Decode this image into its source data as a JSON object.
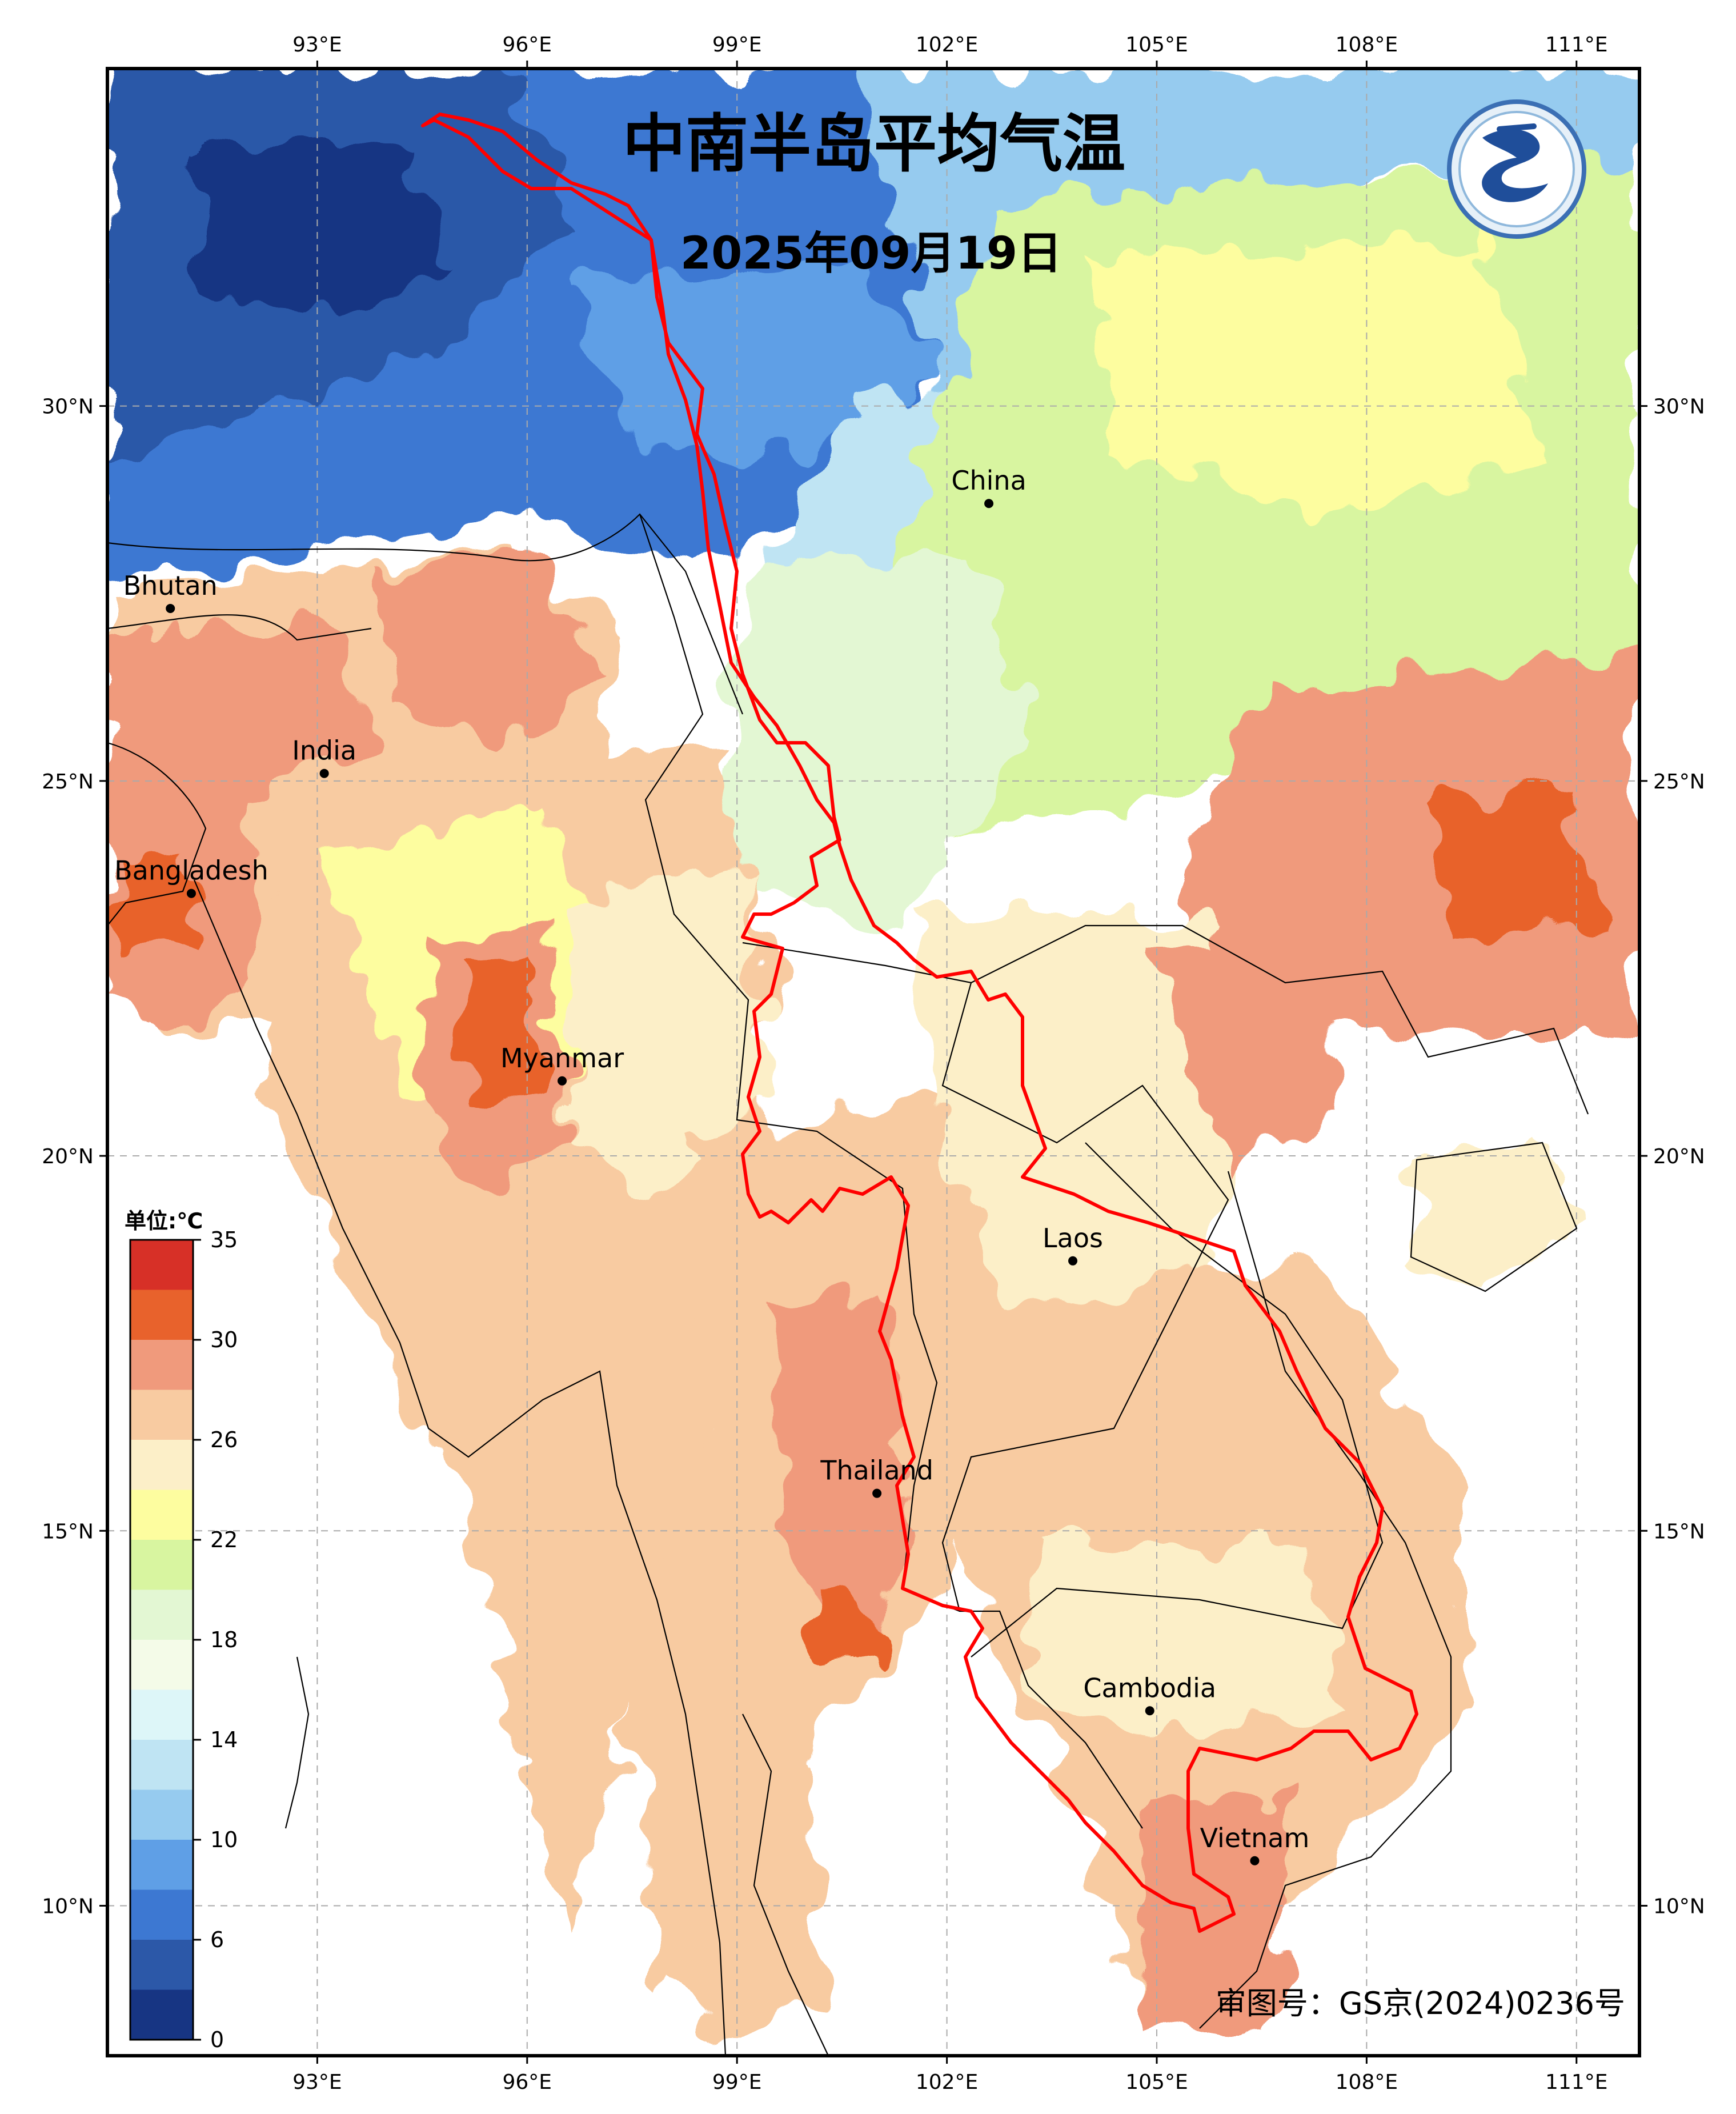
{
  "header": {
    "title": "中南半岛平均气温",
    "date": "2025年09月19日"
  },
  "footer": {
    "approval_number": "审图号：GS京(2024)0236号"
  },
  "axes": {
    "lon_labels": [
      "93°E",
      "96°E",
      "99°E",
      "102°E",
      "105°E",
      "108°E",
      "111°E"
    ],
    "lat_labels": [
      "30°N",
      "25°N",
      "20°N",
      "15°N",
      "10°N"
    ],
    "lon_values": [
      93,
      96,
      99,
      102,
      105,
      108,
      111
    ],
    "lat_values": [
      30,
      25,
      20,
      15,
      10
    ],
    "lon_range": [
      90.0,
      111.9
    ],
    "lat_range": [
      8.0,
      34.5
    ],
    "grid": "dashed"
  },
  "places": [
    {
      "name": "China",
      "lon": 102.6,
      "lat": 28.7
    },
    {
      "name": "Bhutan",
      "lon": 90.9,
      "lat": 27.3
    },
    {
      "name": "India",
      "lon": 93.1,
      "lat": 25.1
    },
    {
      "name": "Bangladesh",
      "lon": 91.2,
      "lat": 23.5
    },
    {
      "name": "Myanmar",
      "lon": 96.5,
      "lat": 21.0
    },
    {
      "name": "Laos",
      "lon": 103.8,
      "lat": 18.6
    },
    {
      "name": "Thailand",
      "lon": 101.0,
      "lat": 15.5
    },
    {
      "name": "Cambodia",
      "lon": 104.9,
      "lat": 12.6
    },
    {
      "name": "Vietnam",
      "lon": 106.4,
      "lat": 10.6
    }
  ],
  "colorbar": {
    "unit_label": "单位:℃",
    "tick_labels": [
      "35",
      "30",
      "26",
      "22",
      "18",
      "14",
      "10",
      "6",
      "0"
    ],
    "colors_top_to_bottom": [
      "#d73027",
      "#e8622c",
      "#f09a7c",
      "#f8cba1",
      "#fcefc8",
      "#fdfd9f",
      "#d8f5a0",
      "#e3f7d3",
      "#f4fbe8",
      "#ddf6f8",
      "#bfe4f3",
      "#96cbef",
      "#5f9fe6",
      "#3d78d2",
      "#2c58a8",
      "#173583"
    ],
    "tick_values": [
      35,
      30,
      26,
      22,
      18,
      14,
      10,
      6,
      0
    ]
  },
  "legend_logo": {
    "name": "气象局徽标",
    "icon": "swirl-logo-icon"
  }
}
